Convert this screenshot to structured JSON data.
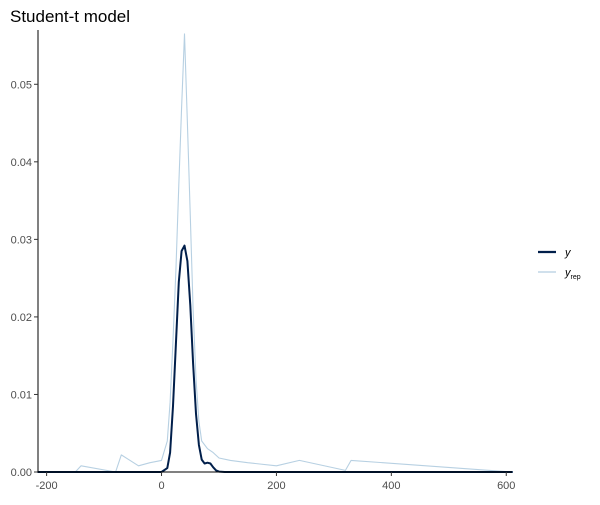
{
  "chart_data": {
    "type": "line",
    "title": "Student-t model",
    "xlabel": "",
    "ylabel": "",
    "xlim": [
      -215,
      610
    ],
    "ylim": [
      0,
      0.057
    ],
    "x_ticks": [
      -200,
      0,
      200,
      400,
      600
    ],
    "y_ticks": [
      0.0,
      0.01,
      0.02,
      0.03,
      0.04,
      0.05
    ],
    "x_tick_labels": [
      "-200",
      "0",
      "200",
      "400",
      "600"
    ],
    "y_tick_labels": [
      "0.00",
      "0.01",
      "0.02",
      "0.03",
      "0.04",
      "0.05"
    ],
    "grid": false,
    "legend_position": "right",
    "legend": [
      {
        "main": "y",
        "sub": "",
        "color": "#011f4b",
        "bold": true
      },
      {
        "main": "y",
        "sub": "rep",
        "color": "#b3cde0",
        "bold": false
      }
    ],
    "series": [
      {
        "name": "y",
        "color": "#011f4b",
        "x": [
          -215,
          0,
          10,
          15,
          20,
          25,
          30,
          35,
          40,
          45,
          50,
          55,
          60,
          65,
          70,
          75,
          80,
          85,
          90,
          95,
          100,
          110,
          610
        ],
        "y": [
          0,
          0,
          0.0005,
          0.0025,
          0.0085,
          0.0165,
          0.0245,
          0.0285,
          0.0292,
          0.0272,
          0.0215,
          0.014,
          0.0075,
          0.0035,
          0.0016,
          0.0011,
          0.0012,
          0.0011,
          0.0006,
          0.0002,
          5e-05,
          0,
          0
        ]
      },
      {
        "name": "y_rep",
        "color": "#b3cde0",
        "x": [
          -215,
          -150,
          -140,
          -80,
          -70,
          -40,
          -20,
          0,
          10,
          15,
          20,
          25,
          30,
          35,
          40,
          45,
          50,
          55,
          60,
          65,
          70,
          80,
          90,
          100,
          120,
          150,
          200,
          240,
          320,
          330,
          610
        ],
        "y": [
          0,
          0,
          0.0008,
          0,
          0.0022,
          0.0008,
          0.0012,
          0.0015,
          0.004,
          0.009,
          0.017,
          0.026,
          0.037,
          0.047,
          0.0565,
          0.045,
          0.033,
          0.021,
          0.012,
          0.0065,
          0.004,
          0.003,
          0.0025,
          0.0018,
          0.0015,
          0.0012,
          0.0008,
          0.0015,
          0.0002,
          0.0015,
          0
        ]
      }
    ]
  }
}
